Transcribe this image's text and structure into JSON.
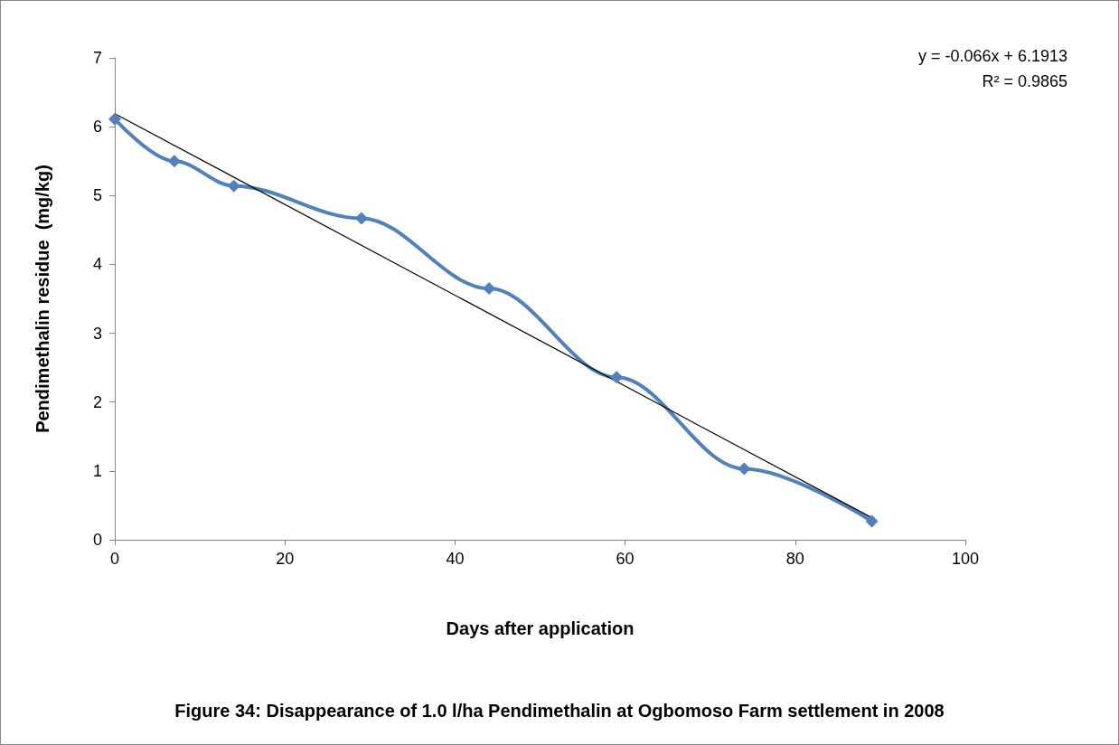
{
  "chart_data": {
    "type": "line",
    "title": "Figure 34: Disappearance of 1.0 l/ha Pendimethalin at Ogbomoso Farm settlement in 2008",
    "xlabel": "Days after application",
    "ylabel": "Pendimethalin residue  (mg/kg)",
    "series": [
      {
        "color": "#4f81bd",
        "x": [
          0,
          7,
          14,
          29,
          44,
          59,
          74,
          89
        ],
        "values": [
          6.11,
          5.5,
          5.14,
          4.67,
          3.65,
          2.36,
          1.03,
          0.27
        ],
        "marker": "diamond"
      },
      {
        "type": "line",
        "color": "#000000",
        "x": [
          0,
          89
        ],
        "values": [
          6.19,
          0.32
        ],
        "marker": "none"
      }
    ],
    "annotations": [
      "y = -0.066x + 6.1913",
      "R² = 0.9865"
    ],
    "xlim": [
      0,
      100
    ],
    "xticks": [
      0,
      20,
      40,
      60,
      80,
      100
    ],
    "ylim": [
      0,
      7
    ],
    "yticks": [
      0,
      1,
      2,
      3,
      4,
      5,
      6,
      7
    ],
    "grid": false
  }
}
